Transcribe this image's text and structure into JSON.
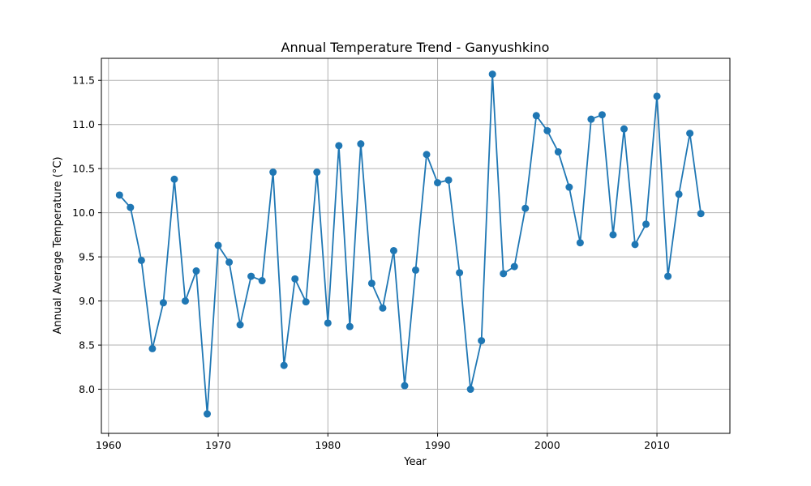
{
  "chart_data": {
    "type": "line",
    "title": "Annual Temperature Trend - Ganyushkino",
    "xlabel": "Year",
    "ylabel": "Annual Average Temperature (°C)",
    "xlim": [
      1959.35,
      2016.65
    ],
    "ylim": [
      7.5,
      11.75
    ],
    "xticks": [
      1960,
      1970,
      1980,
      1990,
      2000,
      2010
    ],
    "yticks": [
      8.0,
      8.5,
      9.0,
      9.5,
      10.0,
      10.5,
      11.0,
      11.5
    ],
    "xtick_labels": [
      "1960",
      "1970",
      "1980",
      "1990",
      "2000",
      "2010"
    ],
    "ytick_labels": [
      "8.0",
      "8.5",
      "9.0",
      "9.5",
      "10.0",
      "10.5",
      "11.0",
      "11.5"
    ],
    "grid": true,
    "series": [
      {
        "color": "#1f77b4",
        "marker": "circle",
        "x": [
          1961,
          1962,
          1963,
          1964,
          1965,
          1966,
          1967,
          1968,
          1969,
          1970,
          1971,
          1972,
          1973,
          1974,
          1975,
          1976,
          1977,
          1978,
          1979,
          1980,
          1981,
          1982,
          1983,
          1984,
          1985,
          1986,
          1987,
          1988,
          1989,
          1990,
          1991,
          1992,
          1993,
          1994,
          1995,
          1996,
          1997,
          1998,
          1999,
          2000,
          2001,
          2002,
          2003,
          2004,
          2005,
          2006,
          2007,
          2008,
          2009,
          2010,
          2011,
          2012,
          2013,
          2014
        ],
        "y": [
          10.2,
          10.06,
          9.46,
          8.46,
          8.98,
          10.38,
          9.0,
          9.34,
          7.72,
          9.63,
          9.44,
          8.73,
          9.28,
          9.23,
          10.46,
          8.27,
          9.25,
          8.99,
          10.46,
          8.75,
          10.76,
          8.71,
          10.78,
          9.2,
          8.92,
          9.57,
          8.04,
          9.35,
          10.66,
          10.34,
          10.37,
          9.32,
          8.0,
          8.55,
          11.57,
          9.31,
          9.39,
          10.05,
          11.1,
          10.93,
          10.69,
          10.29,
          9.66,
          11.06,
          11.11,
          9.75,
          10.95,
          9.64,
          9.87,
          11.32,
          9.28,
          10.21,
          10.9,
          9.99
        ]
      }
    ]
  }
}
